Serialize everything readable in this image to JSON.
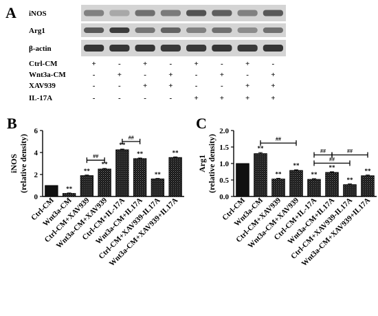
{
  "panel_a": {
    "letter": "A",
    "blots": [
      "iNOS",
      "Arg1",
      "β-actin"
    ],
    "conditions": [
      {
        "label": "Ctrl-CM",
        "signs": [
          "+",
          "-",
          "+",
          "-",
          "+",
          "-",
          "+",
          "-"
        ]
      },
      {
        "label": "Wnt3a-CM",
        "signs": [
          "-",
          "+",
          "-",
          "+",
          "-",
          "+",
          "-",
          "+"
        ]
      },
      {
        "label": "XAV939",
        "signs": [
          "-",
          "-",
          "+",
          "+",
          "-",
          "-",
          "+",
          "+"
        ]
      },
      {
        "label": "IL-17A",
        "signs": [
          "-",
          "-",
          "-",
          "-",
          "+",
          "+",
          "+",
          "+"
        ]
      }
    ]
  },
  "chart_data": [
    {
      "panel": "B",
      "type": "bar",
      "ylabel": "iNOS",
      "ylabel2": "(relative density)",
      "ylim": [
        0,
        6
      ],
      "yticks": [
        0,
        2,
        4,
        6
      ],
      "categories": [
        "Ctrl-CM",
        "Wnt3a-CM",
        "Ctrl-CM+XAV939",
        "Wnt3a-CM+XAV939",
        "Ctrl-CM+IL-17A",
        "Wnt3a-CM+IL17A",
        "Ctrl-CM+XAV939-IL17A",
        "Wnt3a-CM+XAV939+IL17A"
      ],
      "values": [
        1.0,
        0.28,
        1.9,
        2.5,
        4.25,
        3.45,
        1.6,
        3.55
      ],
      "errors": [
        0.0,
        0.04,
        0.05,
        0.05,
        0.06,
        0.05,
        0.04,
        0.05
      ],
      "significance": [
        "",
        "**",
        "**",
        "**",
        "**",
        "**",
        "**",
        "**"
      ],
      "brackets": [
        {
          "from": 2,
          "to": 3,
          "y": 3.3,
          "label": "##"
        },
        {
          "from": 4,
          "to": 5,
          "y": 5.0,
          "label": "##"
        }
      ]
    },
    {
      "panel": "C",
      "type": "bar",
      "ylabel": "Arg1",
      "ylabel2": "(relative density)",
      "ylim": [
        0,
        2.0
      ],
      "yticks": [
        "0.0",
        "0.5",
        "1.0",
        "1.5",
        "2.0"
      ],
      "categories": [
        "Ctrl-CM",
        "Wnt3a-CM",
        "Ctrl-CM+XAV939",
        "Wnt3a-CM+XAV939",
        "Ctrl-CM+IL-17A",
        "Wnt3a-CM+IL17A",
        "Ctrl-CM+XAV939-IL17A",
        "Wnt3a-CM+XAV939+IL17A"
      ],
      "values": [
        1.0,
        1.3,
        0.53,
        0.79,
        0.52,
        0.73,
        0.36,
        0.63
      ],
      "errors": [
        0.0,
        0.03,
        0.02,
        0.02,
        0.02,
        0.02,
        0.02,
        0.02
      ],
      "significance": [
        "",
        "**",
        "**",
        "**",
        "**",
        "**",
        "**",
        "**"
      ],
      "brackets": [
        {
          "from": 1,
          "to": 3,
          "y": 1.62,
          "label": "##"
        },
        {
          "from": 4,
          "to": 5,
          "y": 1.26,
          "label": "##"
        },
        {
          "from": 5,
          "to": 7,
          "y": 1.26,
          "label": "##"
        },
        {
          "from": 4,
          "to": 6,
          "y": 1.01,
          "label": "##"
        }
      ]
    }
  ]
}
